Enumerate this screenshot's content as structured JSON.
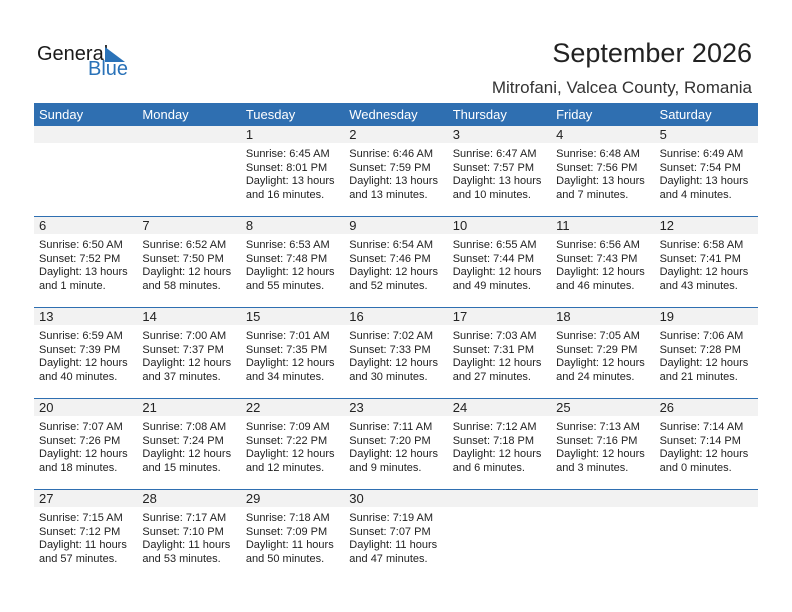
{
  "logo": {
    "general": "General",
    "blue": "Blue"
  },
  "title": "September 2026",
  "location": "Mitrofani, Valcea County, Romania",
  "colors": {
    "header": "#2f6fb1",
    "band": "#f2f2f2"
  },
  "weekdays": [
    "Sunday",
    "Monday",
    "Tuesday",
    "Wednesday",
    "Thursday",
    "Friday",
    "Saturday"
  ],
  "weeks": [
    [
      null,
      null,
      {
        "day": "1",
        "lines": [
          "Sunrise: 6:45 AM",
          "Sunset: 8:01 PM",
          "Daylight: 13 hours",
          "and 16 minutes."
        ]
      },
      {
        "day": "2",
        "lines": [
          "Sunrise: 6:46 AM",
          "Sunset: 7:59 PM",
          "Daylight: 13 hours",
          "and 13 minutes."
        ]
      },
      {
        "day": "3",
        "lines": [
          "Sunrise: 6:47 AM",
          "Sunset: 7:57 PM",
          "Daylight: 13 hours",
          "and 10 minutes."
        ]
      },
      {
        "day": "4",
        "lines": [
          "Sunrise: 6:48 AM",
          "Sunset: 7:56 PM",
          "Daylight: 13 hours",
          "and 7 minutes."
        ]
      },
      {
        "day": "5",
        "lines": [
          "Sunrise: 6:49 AM",
          "Sunset: 7:54 PM",
          "Daylight: 13 hours",
          "and 4 minutes."
        ]
      }
    ],
    [
      {
        "day": "6",
        "lines": [
          "Sunrise: 6:50 AM",
          "Sunset: 7:52 PM",
          "Daylight: 13 hours",
          "and 1 minute."
        ]
      },
      {
        "day": "7",
        "lines": [
          "Sunrise: 6:52 AM",
          "Sunset: 7:50 PM",
          "Daylight: 12 hours",
          "and 58 minutes."
        ]
      },
      {
        "day": "8",
        "lines": [
          "Sunrise: 6:53 AM",
          "Sunset: 7:48 PM",
          "Daylight: 12 hours",
          "and 55 minutes."
        ]
      },
      {
        "day": "9",
        "lines": [
          "Sunrise: 6:54 AM",
          "Sunset: 7:46 PM",
          "Daylight: 12 hours",
          "and 52 minutes."
        ]
      },
      {
        "day": "10",
        "lines": [
          "Sunrise: 6:55 AM",
          "Sunset: 7:44 PM",
          "Daylight: 12 hours",
          "and 49 minutes."
        ]
      },
      {
        "day": "11",
        "lines": [
          "Sunrise: 6:56 AM",
          "Sunset: 7:43 PM",
          "Daylight: 12 hours",
          "and 46 minutes."
        ]
      },
      {
        "day": "12",
        "lines": [
          "Sunrise: 6:58 AM",
          "Sunset: 7:41 PM",
          "Daylight: 12 hours",
          "and 43 minutes."
        ]
      }
    ],
    [
      {
        "day": "13",
        "lines": [
          "Sunrise: 6:59 AM",
          "Sunset: 7:39 PM",
          "Daylight: 12 hours",
          "and 40 minutes."
        ]
      },
      {
        "day": "14",
        "lines": [
          "Sunrise: 7:00 AM",
          "Sunset: 7:37 PM",
          "Daylight: 12 hours",
          "and 37 minutes."
        ]
      },
      {
        "day": "15",
        "lines": [
          "Sunrise: 7:01 AM",
          "Sunset: 7:35 PM",
          "Daylight: 12 hours",
          "and 34 minutes."
        ]
      },
      {
        "day": "16",
        "lines": [
          "Sunrise: 7:02 AM",
          "Sunset: 7:33 PM",
          "Daylight: 12 hours",
          "and 30 minutes."
        ]
      },
      {
        "day": "17",
        "lines": [
          "Sunrise: 7:03 AM",
          "Sunset: 7:31 PM",
          "Daylight: 12 hours",
          "and 27 minutes."
        ]
      },
      {
        "day": "18",
        "lines": [
          "Sunrise: 7:05 AM",
          "Sunset: 7:29 PM",
          "Daylight: 12 hours",
          "and 24 minutes."
        ]
      },
      {
        "day": "19",
        "lines": [
          "Sunrise: 7:06 AM",
          "Sunset: 7:28 PM",
          "Daylight: 12 hours",
          "and 21 minutes."
        ]
      }
    ],
    [
      {
        "day": "20",
        "lines": [
          "Sunrise: 7:07 AM",
          "Sunset: 7:26 PM",
          "Daylight: 12 hours",
          "and 18 minutes."
        ]
      },
      {
        "day": "21",
        "lines": [
          "Sunrise: 7:08 AM",
          "Sunset: 7:24 PM",
          "Daylight: 12 hours",
          "and 15 minutes."
        ]
      },
      {
        "day": "22",
        "lines": [
          "Sunrise: 7:09 AM",
          "Sunset: 7:22 PM",
          "Daylight: 12 hours",
          "and 12 minutes."
        ]
      },
      {
        "day": "23",
        "lines": [
          "Sunrise: 7:11 AM",
          "Sunset: 7:20 PM",
          "Daylight: 12 hours",
          "and 9 minutes."
        ]
      },
      {
        "day": "24",
        "lines": [
          "Sunrise: 7:12 AM",
          "Sunset: 7:18 PM",
          "Daylight: 12 hours",
          "and 6 minutes."
        ]
      },
      {
        "day": "25",
        "lines": [
          "Sunrise: 7:13 AM",
          "Sunset: 7:16 PM",
          "Daylight: 12 hours",
          "and 3 minutes."
        ]
      },
      {
        "day": "26",
        "lines": [
          "Sunrise: 7:14 AM",
          "Sunset: 7:14 PM",
          "Daylight: 12 hours",
          "and 0 minutes."
        ]
      }
    ],
    [
      {
        "day": "27",
        "lines": [
          "Sunrise: 7:15 AM",
          "Sunset: 7:12 PM",
          "Daylight: 11 hours",
          "and 57 minutes."
        ]
      },
      {
        "day": "28",
        "lines": [
          "Sunrise: 7:17 AM",
          "Sunset: 7:10 PM",
          "Daylight: 11 hours",
          "and 53 minutes."
        ]
      },
      {
        "day": "29",
        "lines": [
          "Sunrise: 7:18 AM",
          "Sunset: 7:09 PM",
          "Daylight: 11 hours",
          "and 50 minutes."
        ]
      },
      {
        "day": "30",
        "lines": [
          "Sunrise: 7:19 AM",
          "Sunset: 7:07 PM",
          "Daylight: 11 hours",
          "and 47 minutes."
        ]
      },
      null,
      null,
      null
    ]
  ]
}
